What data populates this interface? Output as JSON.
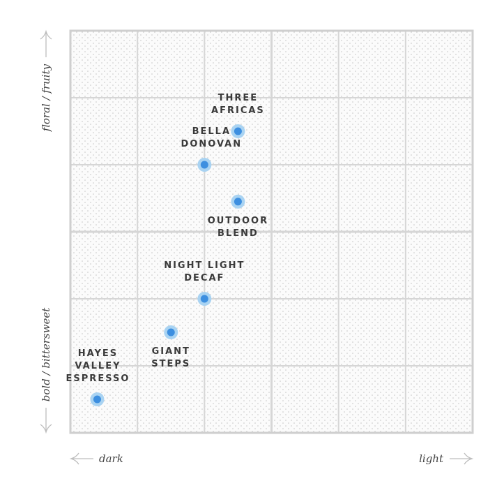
{
  "chart_data": {
    "type": "scatter",
    "title": "",
    "xlabel_left": "dark",
    "xlabel_right": "light",
    "ylabel_top": "floral / fruity",
    "ylabel_bottom": "bold / bittersweet",
    "xlim": [
      -3,
      3
    ],
    "ylim": [
      -3,
      3
    ],
    "grid": true,
    "colors": {
      "point": "#3d8fe0",
      "halo": "#a9d3f2",
      "grid": "#d6d6d6",
      "border": "#cfcfcf",
      "dots": "#c4c4c4"
    },
    "points": [
      {
        "name": "Three Africas",
        "lines": [
          "THREE",
          "AFRICAS"
        ],
        "x": -0.5,
        "y": 1.5,
        "label": "above"
      },
      {
        "name": "Bella Donovan",
        "lines": [
          "BELLA",
          "DONOVAN"
        ],
        "x": -1.0,
        "y": 1.0,
        "label": "above"
      },
      {
        "name": "Outdoor Blend",
        "lines": [
          "OUTDOOR",
          "BLEND"
        ],
        "x": -0.5,
        "y": 0.45,
        "label": "below"
      },
      {
        "name": "Night Light Decaf",
        "lines": [
          "NIGHT LIGHT",
          "DECAF"
        ],
        "x": -1.0,
        "y": -1.0,
        "label": "above"
      },
      {
        "name": "Giant Steps",
        "lines": [
          "GIANT",
          "STEPS"
        ],
        "x": -1.5,
        "y": -1.5,
        "label": "below"
      },
      {
        "name": "Hayes Valley Espresso",
        "lines": [
          "HAYES",
          "VALLEY",
          "ESPRESSO"
        ],
        "x": -2.6,
        "y": -2.5,
        "label": "above"
      }
    ]
  }
}
